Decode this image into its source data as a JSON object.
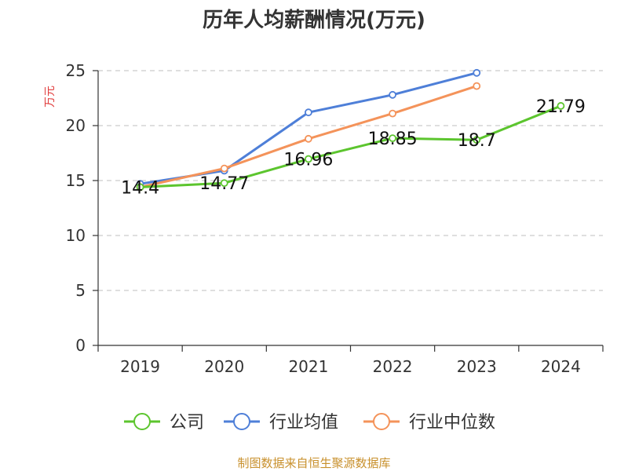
{
  "chart_data": {
    "type": "line",
    "title": "历年人均薪酬情况(万元)",
    "ylabel": "万元",
    "xlabel": "",
    "categories": [
      "2019",
      "2020",
      "2021",
      "2022",
      "2023",
      "2024"
    ],
    "ylim": [
      0,
      25
    ],
    "yticks": [
      0,
      5,
      10,
      15,
      20,
      25
    ],
    "grid": true,
    "legend_position": "bottom",
    "series": [
      {
        "name": "公司",
        "color": "#5cc52e",
        "values": [
          14.4,
          14.77,
          16.96,
          18.85,
          18.7,
          21.79
        ],
        "labels": [
          "14.4",
          "14.77",
          "16.96",
          "18.85",
          "18.7",
          "21.79"
        ]
      },
      {
        "name": "行业均值",
        "color": "#4e7fd8",
        "values": [
          14.7,
          15.9,
          21.2,
          22.8,
          24.8,
          null
        ]
      },
      {
        "name": "行业中位数",
        "color": "#f4935a",
        "values": [
          14.4,
          16.1,
          18.8,
          21.1,
          23.6,
          null
        ]
      }
    ]
  },
  "source": "制图数据来自恒生聚源数据库"
}
